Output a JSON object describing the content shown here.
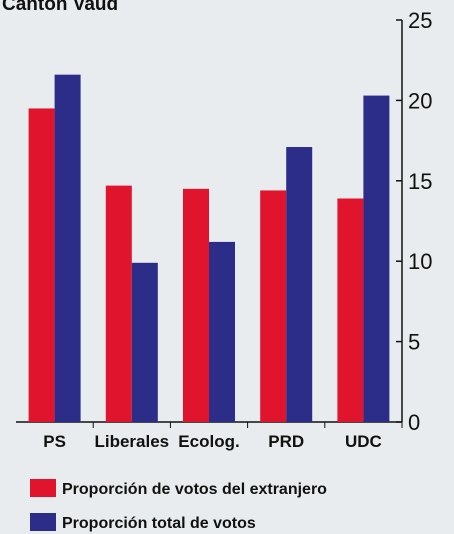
{
  "chart_data": {
    "type": "bar",
    "title": "Cantón Vaud",
    "categories": [
      "PS",
      "Liberales",
      "Ecolog.",
      "PRD",
      "UDC"
    ],
    "series": [
      {
        "name": "Proporción de votos del extranjero",
        "color": "#e0142c",
        "values": [
          19.5,
          14.7,
          14.5,
          14.4,
          13.9
        ]
      },
      {
        "name": "Proporción total de votos",
        "color": "#2b2d88",
        "values": [
          21.6,
          9.9,
          11.2,
          17.1,
          20.3
        ]
      }
    ],
    "ylim": [
      0,
      25
    ],
    "yticks": [
      0,
      5,
      10,
      15,
      20,
      25
    ],
    "grid": false
  }
}
